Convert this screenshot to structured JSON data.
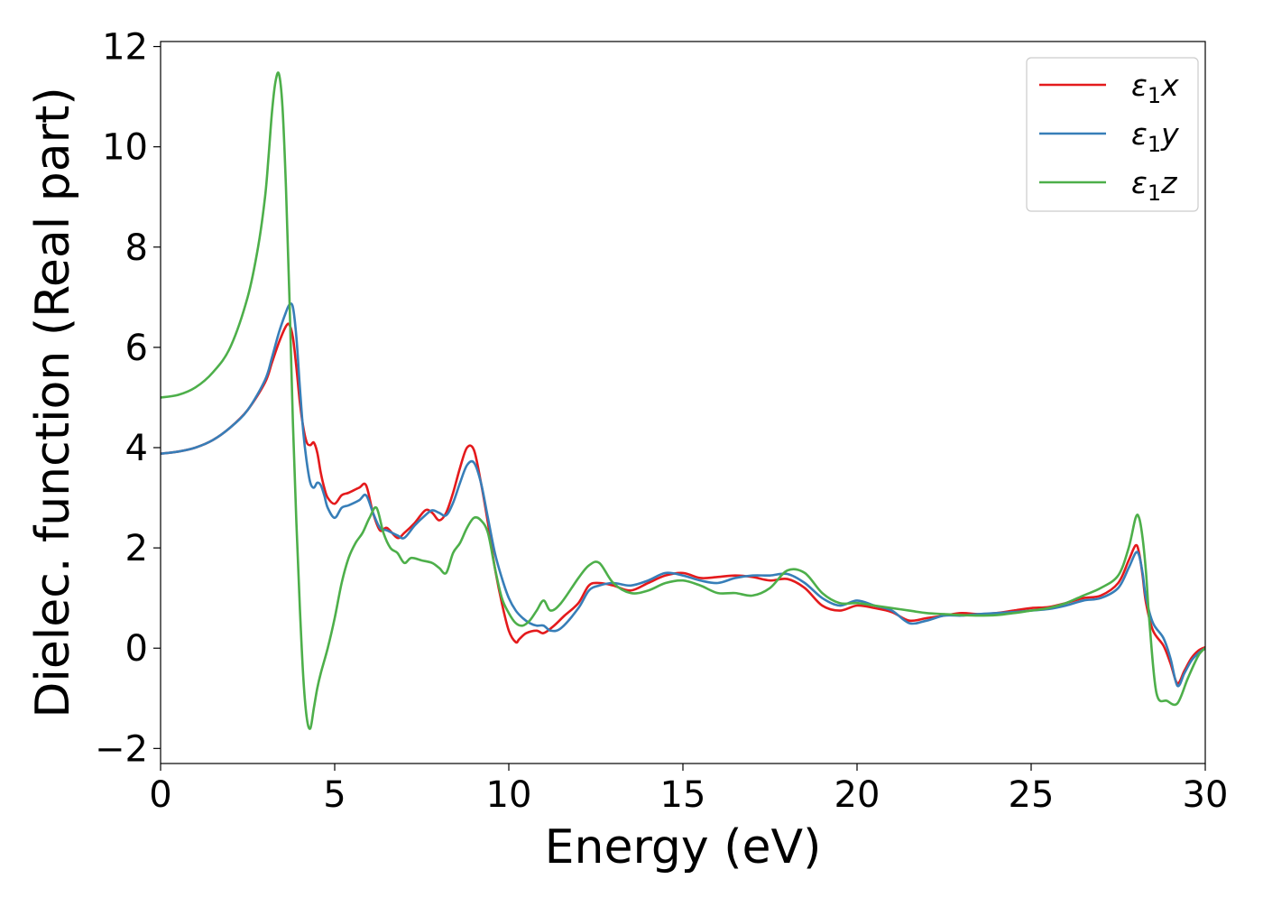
{
  "chart_data": {
    "type": "line",
    "title": "",
    "xlabel": "Energy (eV)",
    "ylabel": "Dielec. function (Real part)",
    "xlim": [
      0,
      30
    ],
    "ylim": [
      -2.3,
      12.1
    ],
    "xticks": [
      0,
      5,
      10,
      15,
      20,
      25,
      30
    ],
    "xtick_labels": [
      "0",
      "5",
      "10",
      "15",
      "20",
      "25",
      "30"
    ],
    "yticks": [
      -2,
      0,
      2,
      4,
      6,
      8,
      10,
      12
    ],
    "ytick_labels": [
      "−2",
      "0",
      "2",
      "4",
      "6",
      "8",
      "10",
      "12"
    ],
    "grid": false,
    "legend_position": "top-right",
    "series": [
      {
        "name": "ε1x",
        "symbol": "ε",
        "subscript": "1",
        "component": "x",
        "color": "#e41a1c",
        "x": [
          0,
          0.5,
          1,
          1.5,
          2,
          2.5,
          3,
          3.2,
          3.4,
          3.6,
          3.7,
          3.8,
          3.9,
          4.0,
          4.1,
          4.2,
          4.3,
          4.4,
          4.5,
          4.6,
          4.7,
          4.8,
          5.0,
          5.2,
          5.4,
          5.7,
          5.9,
          6.1,
          6.3,
          6.5,
          6.8,
          7.0,
          7.3,
          7.6,
          7.8,
          8.0,
          8.2,
          8.4,
          8.6,
          8.8,
          9.0,
          9.2,
          9.4,
          9.6,
          9.8,
          10.0,
          10.2,
          10.3,
          10.5,
          10.8,
          11.0,
          11.3,
          11.6,
          12.0,
          12.3,
          12.6,
          13.0,
          13.5,
          14.0,
          14.5,
          15.0,
          15.5,
          16.0,
          16.5,
          17.0,
          17.5,
          18.0,
          18.5,
          19.0,
          19.5,
          20.0,
          20.5,
          21.0,
          21.5,
          22.0,
          22.5,
          23.0,
          23.5,
          24.0,
          24.5,
          25.0,
          25.5,
          26.0,
          26.5,
          27.0,
          27.5,
          27.8,
          28.0,
          28.1,
          28.2,
          28.3,
          28.5,
          28.8,
          29.0,
          29.2,
          29.4,
          29.6,
          29.8,
          30.0
        ],
        "y": [
          3.88,
          3.92,
          4.0,
          4.15,
          4.4,
          4.75,
          5.3,
          5.7,
          6.1,
          6.42,
          6.45,
          6.2,
          5.6,
          4.9,
          4.4,
          4.1,
          4.05,
          4.1,
          3.9,
          3.5,
          3.2,
          3.0,
          2.88,
          3.05,
          3.1,
          3.2,
          3.25,
          2.7,
          2.35,
          2.4,
          2.2,
          2.3,
          2.5,
          2.75,
          2.7,
          2.55,
          2.7,
          3.1,
          3.6,
          4.0,
          3.95,
          3.3,
          2.5,
          1.6,
          0.9,
          0.35,
          0.12,
          0.18,
          0.3,
          0.35,
          0.3,
          0.45,
          0.65,
          0.9,
          1.25,
          1.3,
          1.25,
          1.15,
          1.3,
          1.45,
          1.5,
          1.4,
          1.42,
          1.45,
          1.42,
          1.35,
          1.38,
          1.2,
          0.85,
          0.75,
          0.85,
          0.8,
          0.72,
          0.55,
          0.6,
          0.65,
          0.7,
          0.68,
          0.7,
          0.75,
          0.8,
          0.82,
          0.9,
          1.0,
          1.05,
          1.3,
          1.75,
          2.05,
          1.9,
          1.45,
          0.9,
          0.35,
          0.05,
          -0.3,
          -0.7,
          -0.45,
          -0.2,
          -0.05,
          0.02
        ]
      },
      {
        "name": "ε1y",
        "symbol": "ε",
        "subscript": "1",
        "component": "y",
        "color": "#377eb8",
        "x": [
          0,
          0.5,
          1,
          1.5,
          2,
          2.5,
          3,
          3.2,
          3.4,
          3.6,
          3.7,
          3.8,
          3.9,
          4.0,
          4.1,
          4.2,
          4.3,
          4.4,
          4.5,
          4.6,
          4.7,
          4.8,
          5.0,
          5.2,
          5.4,
          5.7,
          5.9,
          6.1,
          6.3,
          6.5,
          6.8,
          7.0,
          7.3,
          7.6,
          7.8,
          8.0,
          8.2,
          8.4,
          8.6,
          8.8,
          9.0,
          9.2,
          9.4,
          9.6,
          9.8,
          10.0,
          10.2,
          10.4,
          10.6,
          10.8,
          11.0,
          11.2,
          11.5,
          12.0,
          12.3,
          12.6,
          13.0,
          13.5,
          14.0,
          14.5,
          15.0,
          15.5,
          16.0,
          16.5,
          17.0,
          17.5,
          18.0,
          18.5,
          19.0,
          19.5,
          20.0,
          20.5,
          21.0,
          21.5,
          22.0,
          22.5,
          23.0,
          23.5,
          24.0,
          24.5,
          25.0,
          25.5,
          26.0,
          26.5,
          27.0,
          27.5,
          27.8,
          28.0,
          28.1,
          28.2,
          28.3,
          28.5,
          28.8,
          29.0,
          29.2,
          29.4,
          29.6,
          29.8,
          30.0
        ],
        "y": [
          3.88,
          3.92,
          4.0,
          4.15,
          4.4,
          4.75,
          5.35,
          5.8,
          6.3,
          6.7,
          6.85,
          6.8,
          6.2,
          5.2,
          4.3,
          3.7,
          3.3,
          3.2,
          3.3,
          3.25,
          3.05,
          2.8,
          2.6,
          2.8,
          2.85,
          2.95,
          3.05,
          2.7,
          2.4,
          2.35,
          2.25,
          2.2,
          2.45,
          2.65,
          2.75,
          2.7,
          2.65,
          2.9,
          3.3,
          3.65,
          3.7,
          3.3,
          2.6,
          1.9,
          1.4,
          1.0,
          0.75,
          0.6,
          0.5,
          0.45,
          0.45,
          0.35,
          0.4,
          0.8,
          1.15,
          1.25,
          1.3,
          1.25,
          1.35,
          1.5,
          1.45,
          1.35,
          1.3,
          1.4,
          1.45,
          1.45,
          1.48,
          1.3,
          1.0,
          0.85,
          0.95,
          0.85,
          0.75,
          0.5,
          0.55,
          0.65,
          0.65,
          0.68,
          0.7,
          0.72,
          0.75,
          0.78,
          0.85,
          0.95,
          1.0,
          1.2,
          1.6,
          1.9,
          1.85,
          1.5,
          1.0,
          0.5,
          0.2,
          -0.2,
          -0.75,
          -0.5,
          -0.25,
          -0.1,
          0.0
        ]
      },
      {
        "name": "ε1z",
        "symbol": "ε",
        "subscript": "1",
        "component": "z",
        "color": "#4daf4a",
        "x": [
          0,
          0.5,
          1,
          1.5,
          2,
          2.5,
          2.8,
          3.0,
          3.1,
          3.2,
          3.3,
          3.4,
          3.5,
          3.6,
          3.7,
          3.8,
          3.9,
          4.0,
          4.1,
          4.2,
          4.3,
          4.4,
          4.5,
          4.6,
          4.8,
          5.0,
          5.2,
          5.4,
          5.6,
          5.8,
          6.0,
          6.2,
          6.4,
          6.6,
          6.8,
          7.0,
          7.2,
          7.5,
          7.8,
          8.0,
          8.2,
          8.4,
          8.6,
          8.8,
          9.0,
          9.2,
          9.4,
          9.6,
          9.8,
          10.0,
          10.2,
          10.4,
          10.6,
          10.8,
          11.0,
          11.2,
          11.5,
          12.0,
          12.3,
          12.6,
          13.0,
          13.5,
          14.0,
          14.5,
          15.0,
          15.5,
          16.0,
          16.5,
          17.0,
          17.5,
          18.0,
          18.5,
          19.0,
          19.5,
          20.0,
          20.5,
          21.0,
          21.5,
          22.0,
          22.5,
          23.0,
          23.5,
          24.0,
          24.5,
          25.0,
          25.5,
          26.0,
          26.5,
          27.0,
          27.5,
          27.8,
          28.0,
          28.1,
          28.2,
          28.3,
          28.4,
          28.6,
          28.9,
          29.2,
          29.5,
          29.8,
          30.0
        ],
        "y": [
          5.0,
          5.05,
          5.2,
          5.5,
          6.0,
          7.0,
          8.0,
          9.0,
          9.8,
          10.7,
          11.3,
          11.45,
          10.8,
          9.2,
          7.0,
          4.5,
          2.5,
          0.8,
          -0.6,
          -1.4,
          -1.6,
          -1.2,
          -0.8,
          -0.5,
          0.0,
          0.6,
          1.3,
          1.8,
          2.1,
          2.3,
          2.6,
          2.8,
          2.3,
          2.0,
          1.9,
          1.7,
          1.8,
          1.75,
          1.7,
          1.6,
          1.5,
          1.9,
          2.1,
          2.4,
          2.6,
          2.55,
          2.3,
          1.6,
          1.0,
          0.7,
          0.5,
          0.45,
          0.55,
          0.75,
          0.95,
          0.75,
          0.9,
          1.4,
          1.65,
          1.7,
          1.3,
          1.1,
          1.15,
          1.3,
          1.35,
          1.25,
          1.1,
          1.1,
          1.05,
          1.2,
          1.55,
          1.5,
          1.1,
          0.9,
          0.9,
          0.85,
          0.8,
          0.75,
          0.7,
          0.68,
          0.66,
          0.65,
          0.66,
          0.7,
          0.75,
          0.8,
          0.9,
          1.05,
          1.2,
          1.45,
          2.0,
          2.6,
          2.6,
          2.2,
          1.5,
          0.5,
          -0.9,
          -1.05,
          -1.1,
          -0.6,
          -0.15,
          0.0
        ]
      }
    ]
  }
}
